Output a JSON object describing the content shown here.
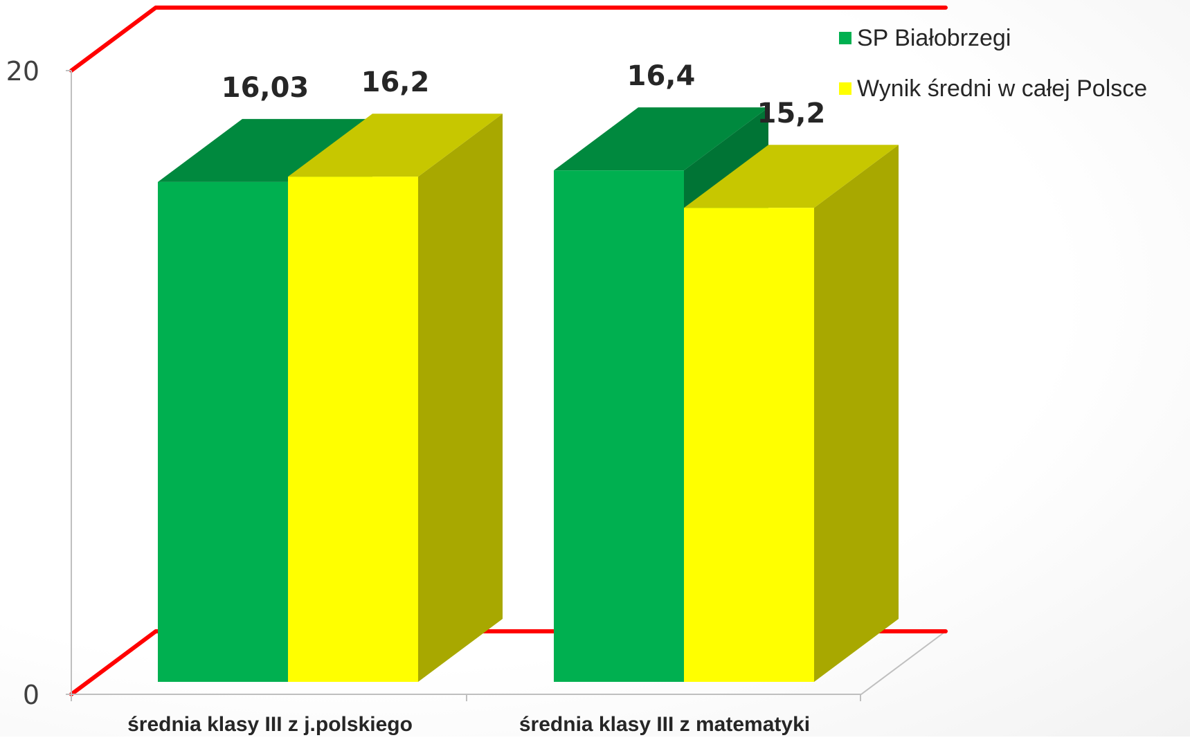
{
  "chart_data": {
    "type": "bar",
    "title": "",
    "xlabel": "",
    "ylabel": "",
    "ylim": [
      0,
      20
    ],
    "y_ticks": [
      "0",
      "20"
    ],
    "categories": [
      "średnia klasy III z j.polskiego",
      "średnia klasy III z matematyki"
    ],
    "series": [
      {
        "name": "SP Białobrzegi",
        "values": [
          16.03,
          16.4
        ],
        "labels": [
          "16,03",
          "16,4"
        ],
        "color": "#00b050"
      },
      {
        "name": "Wynik średni w całej Polsce",
        "values": [
          16.2,
          15.2
        ],
        "labels": [
          "16,2",
          "15,2"
        ],
        "color": "#ffff00"
      }
    ],
    "legend_position": "top-right",
    "grid": false,
    "style": "3d-clustered-column",
    "reference_line_color": "#ff0000"
  }
}
